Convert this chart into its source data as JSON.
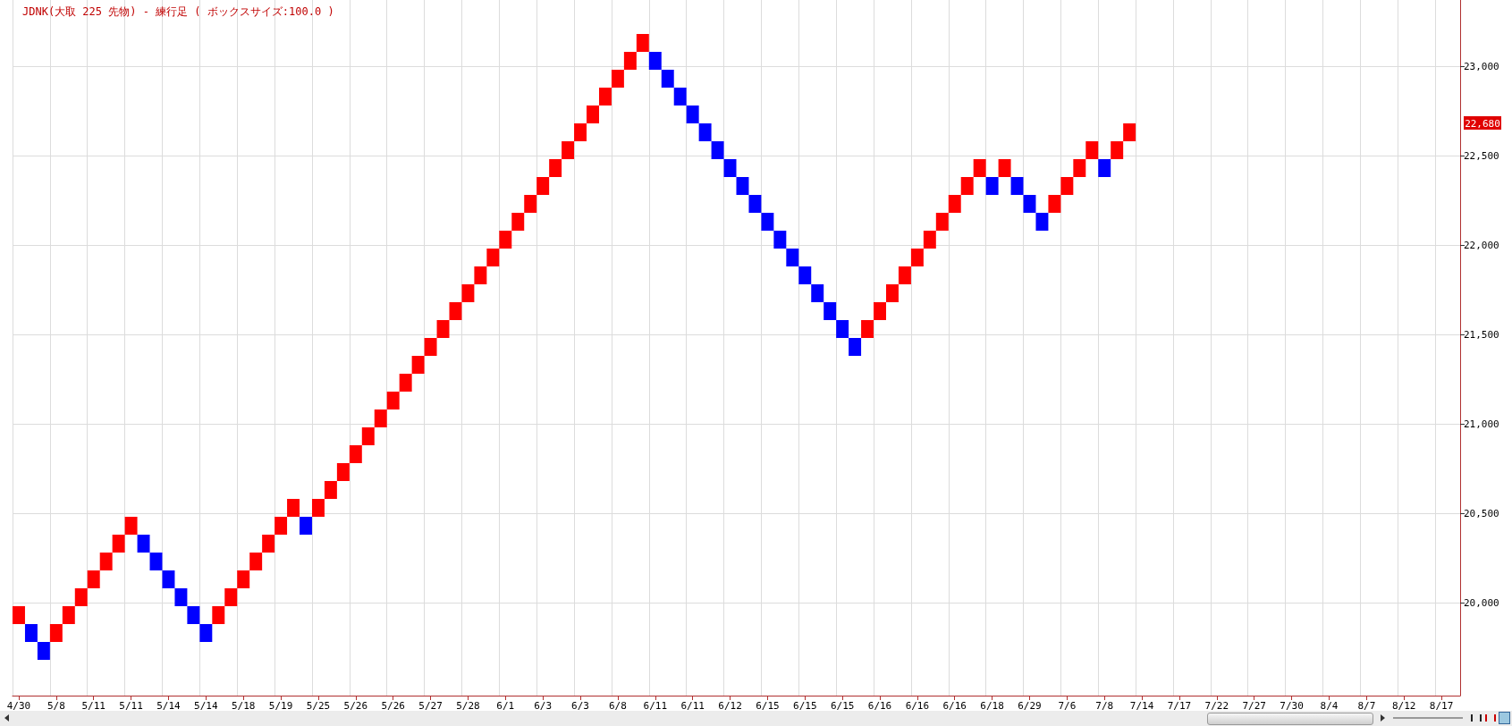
{
  "chart_data": {
    "type": "bar",
    "title": "JDNK(大取 225 先物) - 練行足 ( ボックスサイズ:100.0 )",
    "categories": [
      "4/30",
      null,
      null,
      "5/8",
      null,
      null,
      "5/11",
      null,
      null,
      "5/11",
      null,
      null,
      "5/14",
      null,
      null,
      "5/14",
      null,
      null,
      "5/18",
      null,
      null,
      "5/19",
      null,
      null,
      "5/25",
      null,
      null,
      "5/26",
      null,
      null,
      "5/26",
      null,
      null,
      "5/27",
      null,
      null,
      "5/28",
      null,
      null,
      "6/1",
      null,
      null,
      "6/3",
      null,
      null,
      "6/3",
      null,
      null,
      "6/8",
      null,
      null,
      "6/11",
      null,
      null,
      "6/11",
      null,
      null,
      "6/12",
      null,
      null,
      "6/15",
      null,
      null,
      "6/15",
      null,
      null,
      "6/15",
      null,
      null,
      "6/16",
      null,
      null,
      "6/16",
      null,
      null,
      "6/16",
      null,
      null,
      "6/18",
      null,
      null,
      "6/29",
      null,
      null,
      "7/6",
      null,
      null,
      "7/8",
      null,
      null,
      "7/14",
      null,
      null,
      "7/17",
      null,
      null,
      "7/22",
      null,
      null,
      "7/27",
      null,
      null,
      "7/30",
      null,
      null,
      "8/4",
      null,
      null,
      "8/7",
      null,
      null,
      "8/12",
      null,
      null,
      "8/17",
      null
    ],
    "base": [
      19880,
      19780,
      19680,
      19780,
      19880,
      19980,
      20080,
      20180,
      20280,
      20380,
      20280,
      20180,
      20080,
      19980,
      19880,
      19780,
      19880,
      19980,
      20080,
      20180,
      20280,
      20380,
      20480,
      20380,
      20480,
      20580,
      20680,
      20780,
      20880,
      20980,
      21080,
      21180,
      21280,
      21380,
      21480,
      21580,
      21680,
      21780,
      21880,
      21980,
      22080,
      22180,
      22280,
      22380,
      22480,
      22580,
      22680,
      22780,
      22880,
      22980,
      23080,
      22980,
      22880,
      22780,
      22680,
      22580,
      22480,
      22380,
      22280,
      22180,
      22080,
      21980,
      21880,
      21780,
      21680,
      21580,
      21480,
      21380,
      21480,
      21580,
      21680,
      21780,
      21880,
      21980,
      22080,
      22180,
      22280,
      22380,
      22280,
      22380,
      22280,
      22180,
      22080,
      22180,
      22280,
      22380,
      22480,
      22380,
      22480,
      22580,
      null,
      null,
      null,
      null,
      null,
      null,
      null,
      null,
      null,
      null,
      null,
      null,
      null,
      null,
      null,
      null,
      null,
      null,
      null,
      null,
      null,
      null,
      null,
      null,
      null,
      null
    ],
    "values": [
      100,
      100,
      100,
      100,
      100,
      100,
      100,
      100,
      100,
      100,
      100,
      100,
      100,
      100,
      100,
      100,
      100,
      100,
      100,
      100,
      100,
      100,
      100,
      100,
      100,
      100,
      100,
      100,
      100,
      100,
      100,
      100,
      100,
      100,
      100,
      100,
      100,
      100,
      100,
      100,
      100,
      100,
      100,
      100,
      100,
      100,
      100,
      100,
      100,
      100,
      100,
      100,
      100,
      100,
      100,
      100,
      100,
      100,
      100,
      100,
      100,
      100,
      100,
      100,
      100,
      100,
      100,
      100,
      100,
      100,
      100,
      100,
      100,
      100,
      100,
      100,
      100,
      100,
      100,
      100,
      100,
      100,
      100,
      100,
      100,
      100,
      100,
      100,
      100,
      100,
      null,
      null,
      null,
      null,
      null,
      null,
      null,
      null,
      null,
      null,
      null,
      null,
      null,
      null,
      null,
      null,
      null,
      null,
      null,
      null,
      null,
      null,
      null,
      null,
      null,
      null
    ],
    "colors": [
      "#ff0000",
      "#0000ff",
      "#0000ff",
      "#ff0000",
      "#ff0000",
      "#ff0000",
      "#ff0000",
      "#ff0000",
      "#ff0000",
      "#ff0000",
      "#0000ff",
      "#0000ff",
      "#0000ff",
      "#0000ff",
      "#0000ff",
      "#0000ff",
      "#ff0000",
      "#ff0000",
      "#ff0000",
      "#ff0000",
      "#ff0000",
      "#ff0000",
      "#ff0000",
      "#0000ff",
      "#ff0000",
      "#ff0000",
      "#ff0000",
      "#ff0000",
      "#ff0000",
      "#ff0000",
      "#ff0000",
      "#ff0000",
      "#ff0000",
      "#ff0000",
      "#ff0000",
      "#ff0000",
      "#ff0000",
      "#ff0000",
      "#ff0000",
      "#ff0000",
      "#ff0000",
      "#ff0000",
      "#ff0000",
      "#ff0000",
      "#ff0000",
      "#ff0000",
      "#ff0000",
      "#ff0000",
      "#ff0000",
      "#ff0000",
      "#ff0000",
      "#0000ff",
      "#0000ff",
      "#0000ff",
      "#0000ff",
      "#0000ff",
      "#0000ff",
      "#0000ff",
      "#0000ff",
      "#0000ff",
      "#0000ff",
      "#0000ff",
      "#0000ff",
      "#0000ff",
      "#0000ff",
      "#0000ff",
      "#0000ff",
      "#0000ff",
      "#ff0000",
      "#ff0000",
      "#ff0000",
      "#ff0000",
      "#ff0000",
      "#ff0000",
      "#ff0000",
      "#ff0000",
      "#ff0000",
      "#ff0000",
      "#0000ff",
      "#ff0000",
      "#0000ff",
      "#0000ff",
      "#0000ff",
      "#ff0000",
      "#ff0000",
      "#ff0000",
      "#ff0000",
      "#0000ff",
      "#ff0000",
      "#ff0000",
      null,
      null,
      null,
      null,
      null,
      null,
      null,
      null,
      null,
      null,
      null,
      null,
      null,
      null,
      null,
      null,
      null,
      null,
      null,
      null,
      null,
      null,
      null,
      null,
      null,
      null
    ],
    "ylim": [
      19480,
      23370
    ],
    "yticks": [
      {
        "value": 20000,
        "label": "20,000"
      },
      {
        "value": 20500,
        "label": "20,500"
      },
      {
        "value": 21000,
        "label": "21,000"
      },
      {
        "value": 21500,
        "label": "21,500"
      },
      {
        "value": 22000,
        "label": "22,000"
      },
      {
        "value": 22500,
        "label": "22,500"
      },
      {
        "value": 23000,
        "label": "23,000"
      }
    ],
    "annotations": [
      "22,680"
    ],
    "grid": true
  }
}
